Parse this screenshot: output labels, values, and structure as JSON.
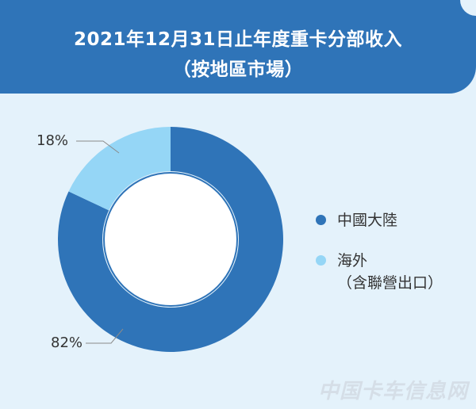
{
  "title": {
    "line1": "2021年12月31日止年度重卡分部收入",
    "line2": "（按地區市場）"
  },
  "chart_data": {
    "type": "pie",
    "series": [
      {
        "name": "中國大陸",
        "value": 82,
        "label": "82%",
        "color": "#2f74b8"
      },
      {
        "name": "海外\n（含聯營出口）",
        "value": 18,
        "label": "18%",
        "color": "#95d6f6"
      }
    ],
    "legend": "right",
    "donut": true
  },
  "legend": [
    {
      "line1": "中國大陸",
      "line2": "",
      "color": "#2f74b8"
    },
    {
      "line1": "海外",
      "line2": "（含聯營出口）",
      "color": "#95d6f6"
    }
  ],
  "watermark": "中国卡车信息网",
  "colors": {
    "header": "#2f74b8",
    "background": "#e4f2fb",
    "hole": "#ffffff"
  }
}
